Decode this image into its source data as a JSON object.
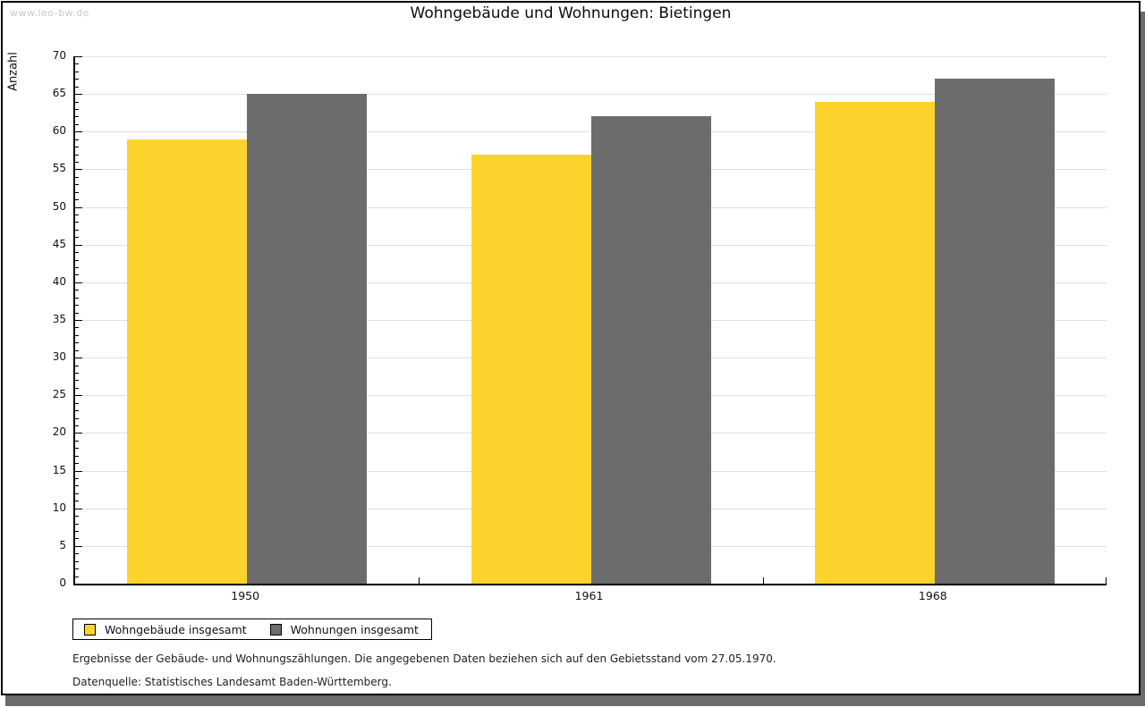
{
  "watermark": "www.leo-bw.de",
  "title": "Wohngebäude und Wohnungen: Bietingen",
  "chart_data": {
    "type": "bar",
    "title": "Wohngebäude und Wohnungen: Bietingen",
    "xlabel": "",
    "ylabel": "Anzahl",
    "categories": [
      "1950",
      "1961",
      "1968"
    ],
    "series": [
      {
        "name": "Wohngebäude insgesamt",
        "color": "#fcd32c",
        "values": [
          59,
          57,
          64
        ]
      },
      {
        "name": "Wohnungen insgesamt",
        "color": "#6c6c6c",
        "values": [
          65,
          62,
          67
        ]
      }
    ],
    "ylim": [
      0,
      70
    ],
    "ytick_step": 5,
    "minor_tick_step": 1,
    "grid": true,
    "legend_position": "bottom-left"
  },
  "footnotes": {
    "line1": "Ergebnisse der Gebäude- und Wohnungszählungen. Die angegebenen Daten beziehen sich auf den Gebietsstand vom 27.05.1970.",
    "line2": "Datenquelle: Statistisches Landesamt Baden-Württemberg."
  },
  "colors": {
    "bar_yellow": "#fcd32c",
    "bar_gray": "#6c6c6c",
    "gridline": "#e0e0e0",
    "axis": "#000000",
    "watermark": "#c9c9c9",
    "frame_shadow": "#6b6b6b"
  }
}
